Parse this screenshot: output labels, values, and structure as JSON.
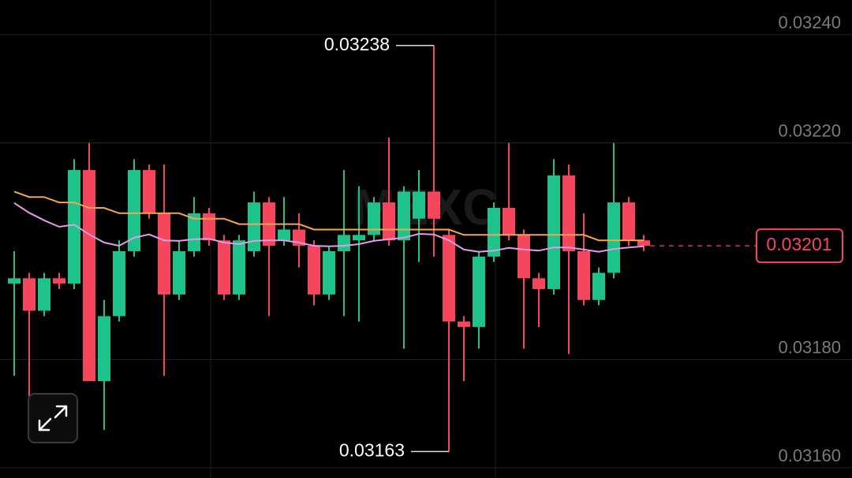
{
  "chart_data": {
    "type": "candlestick",
    "watermark": "MEXC",
    "up_color": "#1ec28b",
    "down_color": "#f6465d",
    "grid": true,
    "ylim": [
      0.031581,
      0.032464
    ],
    "yticks": [
      {
        "value": 0.0324,
        "label": "0.03240"
      },
      {
        "value": 0.0322,
        "label": "0.03220"
      },
      {
        "value": 0.0318,
        "label": "0.03180"
      },
      {
        "value": 0.0316,
        "label": "0.03160"
      }
    ],
    "open": [
      0.03194,
      0.03195,
      0.03189,
      0.03195,
      0.03194,
      0.03215,
      0.03176,
      0.03188,
      0.032,
      0.03215,
      0.03207,
      0.03192,
      0.032,
      0.03207,
      0.03202,
      0.03192,
      0.032,
      0.03209,
      0.03202,
      0.03204,
      0.03201,
      0.03192,
      0.032,
      0.03202,
      0.03203,
      0.03209,
      0.03202,
      0.03206,
      0.03211,
      0.03203,
      0.03187,
      0.03186,
      0.03199,
      0.03208,
      0.03203,
      0.03195,
      0.03193,
      0.03214,
      0.032,
      0.03191,
      0.03196,
      0.03209,
      0.03202
    ],
    "high": [
      0.032,
      0.03196,
      0.03196,
      0.03196,
      0.03217,
      0.0322,
      0.03191,
      0.03202,
      0.03217,
      0.03216,
      0.03216,
      0.03202,
      0.0321,
      0.03208,
      0.03203,
      0.03203,
      0.03211,
      0.0321,
      0.0321,
      0.03207,
      0.03202,
      0.03201,
      0.03215,
      0.03212,
      0.0321,
      0.03221,
      0.03212,
      0.03215,
      0.03238,
      0.03204,
      0.03188,
      0.032,
      0.03209,
      0.0322,
      0.03204,
      0.03196,
      0.03217,
      0.03216,
      0.03207,
      0.03197,
      0.0322,
      0.0321,
      0.03203
    ],
    "low": [
      0.03177,
      0.03173,
      0.03188,
      0.03193,
      0.03193,
      0.03176,
      0.03167,
      0.03187,
      0.03199,
      0.03206,
      0.03177,
      0.03191,
      0.03199,
      0.03201,
      0.03191,
      0.03191,
      0.03199,
      0.03188,
      0.03201,
      0.03197,
      0.0319,
      0.03191,
      0.03188,
      0.03187,
      0.03202,
      0.03201,
      0.03182,
      0.03198,
      0.03199,
      0.03163,
      0.03176,
      0.03182,
      0.03198,
      0.03202,
      0.03182,
      0.03186,
      0.03192,
      0.03181,
      0.0319,
      0.0319,
      0.03195,
      0.03201,
      0.032
    ],
    "close": [
      0.03195,
      0.03189,
      0.03195,
      0.03194,
      0.03215,
      0.03176,
      0.03188,
      0.032,
      0.03215,
      0.03207,
      0.03192,
      0.032,
      0.03207,
      0.03202,
      0.03192,
      0.03202,
      0.03209,
      0.03201,
      0.03204,
      0.03201,
      0.03192,
      0.032,
      0.03203,
      0.03203,
      0.03209,
      0.03202,
      0.03211,
      0.03211,
      0.03206,
      0.03187,
      0.03186,
      0.03199,
      0.03208,
      0.03203,
      0.03195,
      0.03193,
      0.03214,
      0.032,
      0.03191,
      0.03196,
      0.03209,
      0.03202,
      0.03201
    ],
    "series": [
      {
        "color": "#f4a64e",
        "values": [
          0.03211,
          0.0321,
          0.0321,
          0.03209,
          0.03209,
          0.03208,
          0.03208,
          0.03207,
          0.03207,
          0.03207,
          0.03207,
          0.03207,
          0.03206,
          0.03206,
          0.03206,
          0.03205,
          0.03205,
          0.03205,
          0.03205,
          0.03205,
          0.03204,
          0.03204,
          0.03204,
          0.03204,
          0.03204,
          0.03204,
          0.03204,
          0.03204,
          0.03204,
          0.03204,
          0.03203,
          0.03203,
          0.03203,
          0.03203,
          0.03203,
          0.03203,
          0.03203,
          0.03203,
          0.03203,
          0.03202,
          0.03202,
          0.03202,
          0.03202
        ]
      },
      {
        "color": "#e59be8",
        "values": [
          0.032089,
          0.032071,
          0.032057,
          0.032045,
          0.032049,
          0.032031,
          0.032016,
          0.03201,
          0.032025,
          0.032031,
          0.03202,
          0.032019,
          0.032022,
          0.032023,
          0.032016,
          0.032013,
          0.032019,
          0.03202,
          0.03202,
          0.032016,
          0.03201,
          0.032009,
          0.03201,
          0.032013,
          0.032019,
          0.032022,
          0.032025,
          0.032032,
          0.032031,
          0.03202,
          0.032003,
          0.031999,
          0.032001,
          0.032006,
          0.032003,
          0.032001,
          0.032007,
          0.032007,
          0.032003,
          0.031999,
          0.032004,
          0.032007,
          0.032009
        ]
      }
    ],
    "annotations": [
      {
        "value": 0.03238,
        "label": "0.03238"
      },
      {
        "value": 0.03163,
        "label": "0.03163"
      }
    ],
    "current_price": {
      "value": 0.03201,
      "label": "0.03201"
    }
  }
}
